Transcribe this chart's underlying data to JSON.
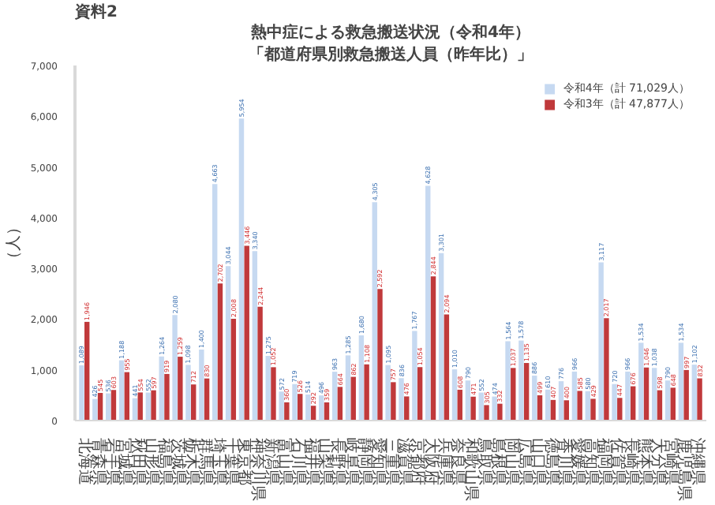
{
  "chart_data": {
    "type": "bar",
    "title": "熱中症による救急搬送状況（令和4年）",
    "subtitle": "「都道府県別救急搬送人員（昨年比）」",
    "ylabel": "（人）",
    "annotations": [
      "資料2"
    ],
    "categories": [
      "北海道",
      "青森県",
      "岩手県",
      "宮城県",
      "秋田県",
      "山形県",
      "福島県",
      "茨城県",
      "栃木県",
      "群馬県",
      "埼玉県",
      "千葉県",
      "東京都",
      "神奈川県",
      "新潟県",
      "富山県",
      "石川県",
      "福井県",
      "山梨県",
      "長野県",
      "岐阜県",
      "静岡県",
      "愛知県",
      "三重県",
      "滋賀県",
      "京都府",
      "大阪府",
      "兵庫県",
      "奈良県",
      "和歌山県",
      "鳥取県",
      "島根県",
      "岡山県",
      "広島県",
      "山口県",
      "徳島県",
      "香川県",
      "愛媛県",
      "高知県",
      "福岡県",
      "佐賀県",
      "長崎県",
      "熊本県",
      "大分県",
      "宮崎県",
      "鹿児島県",
      "沖縄県"
    ],
    "series": [
      {
        "name": "令和4年（計 71,029人）",
        "color": "#c6d9f1",
        "values": [
          1089,
          426,
          536,
          1188,
          441,
          552,
          1264,
          2080,
          1098,
          1400,
          4663,
          3044,
          5954,
          3340,
          1275,
          572,
          719,
          514,
          496,
          963,
          1285,
          1680,
          4305,
          1095,
          836,
          1767,
          4628,
          3301,
          1010,
          790,
          552,
          474,
          1564,
          1578,
          886,
          610,
          776,
          966,
          580,
          3117,
          720,
          966,
          1534,
          1038,
          790,
          1534,
          1102
        ],
        "value_labels": [
          "1,089",
          "426",
          "536",
          "1,188",
          "441",
          "552",
          "1,264",
          "2,080",
          "1,098",
          "1,400",
          "4,663",
          "3,044",
          "5,954",
          "3,340",
          "1,275",
          "572",
          "719",
          "514",
          "496",
          "963",
          "1,285",
          "1,680",
          "4,305",
          "1,095",
          "836",
          "1,767",
          "4,628",
          "3,301",
          "1,010",
          "790",
          "552",
          "474",
          "1,564",
          "1,578",
          "886",
          "610",
          "776",
          "966",
          "580",
          "3,117",
          "720",
          "966",
          "1,534",
          "1,038",
          "790",
          "1,534",
          "1,102"
        ]
      },
      {
        "name": "令和3年（計 47,877人）",
        "color": "#c0393b",
        "values": [
          1946,
          545,
          603,
          955,
          554,
          597,
          919,
          1259,
          712,
          830,
          2702,
          2008,
          3446,
          2244,
          1052,
          360,
          526,
          292,
          359,
          664,
          862,
          1108,
          2592,
          757,
          476,
          1054,
          2844,
          2094,
          608,
          471,
          305,
          332,
          1037,
          1135,
          499,
          407,
          400,
          585,
          429,
          2017,
          447,
          676,
          1046,
          598,
          648,
          997,
          832
        ],
        "value_labels": [
          "1,946",
          "545",
          "603",
          "955",
          "554",
          "597",
          "919",
          "1,259",
          "712",
          "830",
          "2,702",
          "2,008",
          "3,446",
          "2,244",
          "1,052",
          "360",
          "526",
          "292",
          "359",
          "664",
          "862",
          "1,108",
          "2,592",
          "757",
          "476",
          "1,054",
          "2,844",
          "2,094",
          "608",
          "471",
          "305",
          "332",
          "1,037",
          "1,135",
          "499",
          "407",
          "400",
          "585",
          "429",
          "2,017",
          "447",
          "676",
          "1,046",
          "598",
          "648",
          "997",
          "832"
        ]
      }
    ],
    "ylim": [
      0,
      7000
    ],
    "yticks": [
      0,
      {
        "value": 1000,
        "label": "1,000"
      },
      {
        "value": 2000,
        "label": "2,000"
      },
      {
        "value": 3000,
        "label": "3,000"
      },
      {
        "value": 4000,
        "label": "4,000"
      },
      {
        "value": 5000,
        "label": "5,000"
      },
      {
        "value": 6000,
        "label": "6,000"
      },
      {
        "value": 7000,
        "label": "7,000"
      }
    ],
    "legend": "top right"
  }
}
